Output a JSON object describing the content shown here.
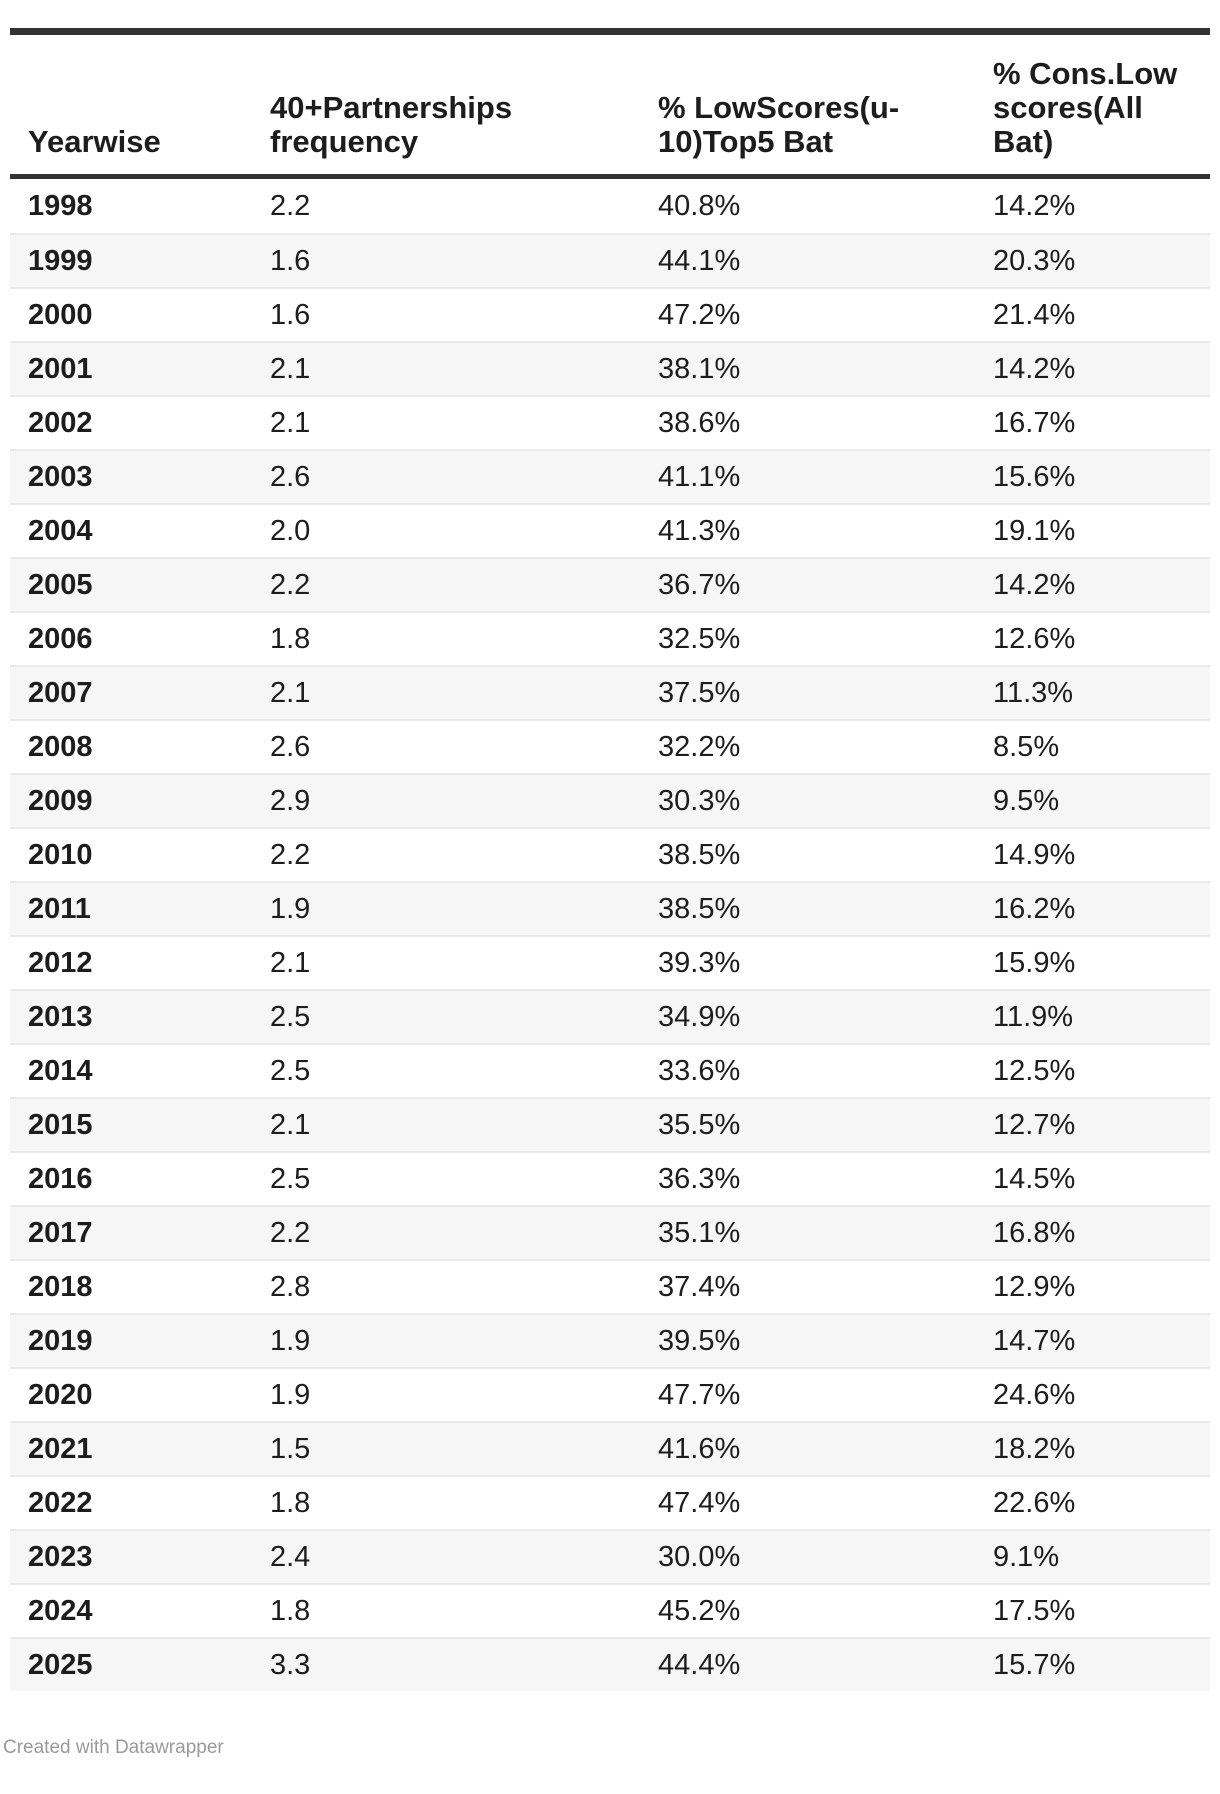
{
  "chart_data": {
    "type": "table",
    "columns": [
      "Yearwise",
      "40+Partnerships\nfrequency",
      "% LowScores(u-\n10)Top5 Bat",
      "% Cons.Low\nscores(All\nBat)"
    ],
    "rows": [
      [
        "1998",
        "2.2",
        "40.8%",
        "14.2%"
      ],
      [
        "1999",
        "1.6",
        "44.1%",
        "20.3%"
      ],
      [
        "2000",
        "1.6",
        "47.2%",
        "21.4%"
      ],
      [
        "2001",
        "2.1",
        "38.1%",
        "14.2%"
      ],
      [
        "2002",
        "2.1",
        "38.6%",
        "16.7%"
      ],
      [
        "2003",
        "2.6",
        "41.1%",
        "15.6%"
      ],
      [
        "2004",
        "2.0",
        "41.3%",
        "19.1%"
      ],
      [
        "2005",
        "2.2",
        "36.7%",
        "14.2%"
      ],
      [
        "2006",
        "1.8",
        "32.5%",
        "12.6%"
      ],
      [
        "2007",
        "2.1",
        "37.5%",
        "11.3%"
      ],
      [
        "2008",
        "2.6",
        "32.2%",
        "8.5%"
      ],
      [
        "2009",
        "2.9",
        "30.3%",
        "9.5%"
      ],
      [
        "2010",
        "2.2",
        "38.5%",
        "14.9%"
      ],
      [
        "2011",
        "1.9",
        "38.5%",
        "16.2%"
      ],
      [
        "2012",
        "2.1",
        "39.3%",
        "15.9%"
      ],
      [
        "2013",
        "2.5",
        "34.9%",
        "11.9%"
      ],
      [
        "2014",
        "2.5",
        "33.6%",
        "12.5%"
      ],
      [
        "2015",
        "2.1",
        "35.5%",
        "12.7%"
      ],
      [
        "2016",
        "2.5",
        "36.3%",
        "14.5%"
      ],
      [
        "2017",
        "2.2",
        "35.1%",
        "16.8%"
      ],
      [
        "2018",
        "2.8",
        "37.4%",
        "12.9%"
      ],
      [
        "2019",
        "1.9",
        "39.5%",
        "14.7%"
      ],
      [
        "2020",
        "1.9",
        "47.7%",
        "24.6%"
      ],
      [
        "2021",
        "1.5",
        "41.6%",
        "18.2%"
      ],
      [
        "2022",
        "1.8",
        "47.4%",
        "22.6%"
      ],
      [
        "2023",
        "2.4",
        "30.0%",
        "9.1%"
      ],
      [
        "2024",
        "1.8",
        "45.2%",
        "17.5%"
      ],
      [
        "2025",
        "3.3",
        "44.4%",
        "15.7%"
      ]
    ],
    "layout_hints": {
      "striped_rows": true,
      "stripe_on": "even",
      "header_rule": "thick-top-and-bottom",
      "grid": "off"
    }
  },
  "footer": {
    "credit": "Created with Datawrapper"
  },
  "colors": {
    "rule": "#333333",
    "stripe": "#f6f6f6",
    "separator": "#e9e9e9",
    "text": "#1d1d1d",
    "credit": "#9a9a9a",
    "bg": "#ffffff"
  }
}
